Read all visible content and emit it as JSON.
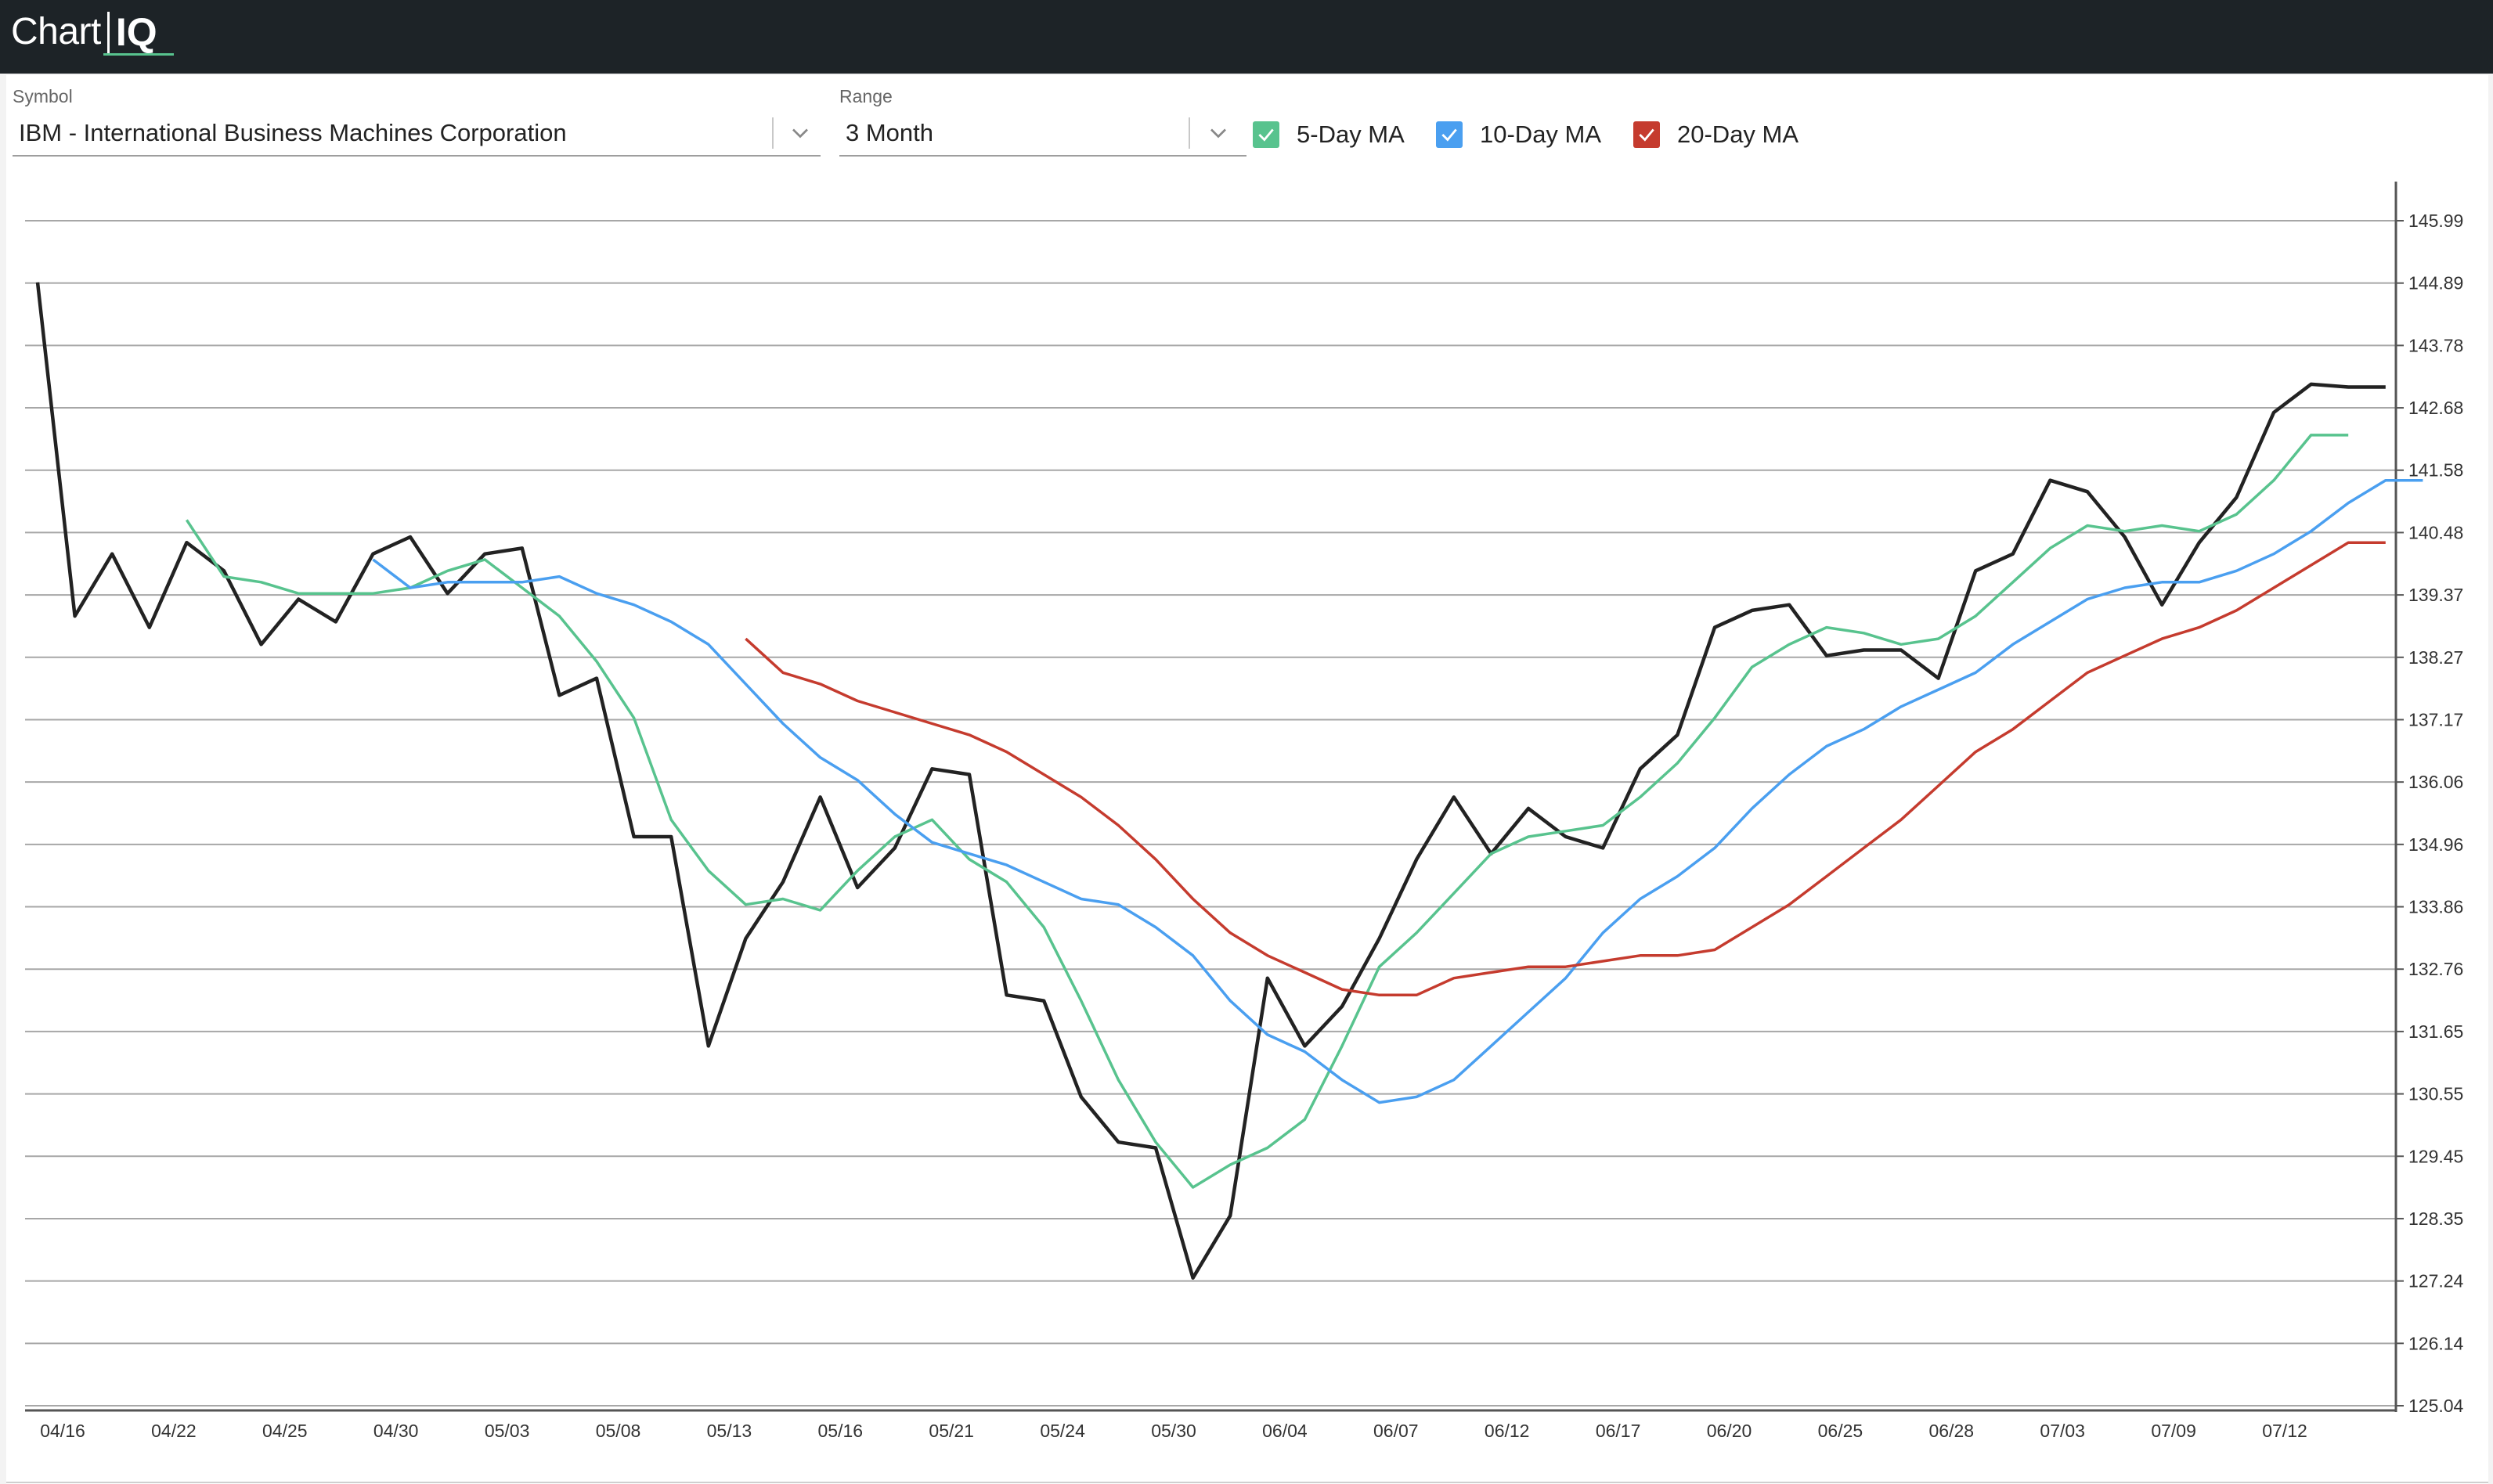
{
  "app": {
    "logo_chart": "Chart",
    "logo_iq": "IQ",
    "accent_color": "#58c38e",
    "topbar_color": "#1d2327"
  },
  "controls": {
    "symbol_label": "Symbol",
    "symbol_value": "IBM - International Business Machines Corporation",
    "range_label": "Range",
    "range_value": "3 Month",
    "chevron_icon": "chevron-down-icon",
    "ma_toggles": [
      {
        "label": "5-Day MA",
        "checked": true,
        "color": "#58c38e"
      },
      {
        "label": "10-Day MA",
        "checked": true,
        "color": "#4a9ff0"
      },
      {
        "label": "20-Day MA",
        "checked": true,
        "color": "#c53b2e"
      }
    ]
  },
  "chart_data": {
    "type": "line",
    "title": "",
    "xlabel": "",
    "ylabel": "",
    "ylim": [
      125.04,
      145.99
    ],
    "y_ticks": [
      "145.99",
      "144.89",
      "143.78",
      "142.68",
      "141.58",
      "140.48",
      "139.37",
      "138.27",
      "137.17",
      "136.06",
      "134.96",
      "133.86",
      "132.76",
      "131.65",
      "130.55",
      "129.45",
      "128.35",
      "127.24",
      "126.14",
      "125.04"
    ],
    "x_tick_labels": [
      "04/16",
      "04/22",
      "04/25",
      "04/30",
      "05/03",
      "05/08",
      "05/13",
      "05/16",
      "05/21",
      "05/24",
      "05/30",
      "06/04",
      "06/07",
      "06/12",
      "06/17",
      "06/20",
      "06/25",
      "06/28",
      "07/03",
      "07/09",
      "07/12"
    ],
    "grid": true,
    "legend": "none",
    "series": [
      {
        "name": "",
        "color": "#222222",
        "values": [
          144.9,
          139.0,
          140.1,
          138.8,
          140.3,
          139.8,
          138.5,
          139.3,
          138.9,
          140.1,
          140.4,
          139.4,
          140.1,
          140.2,
          137.6,
          137.9,
          135.1,
          135.1,
          131.4,
          133.3,
          134.3,
          135.8,
          134.2,
          134.9,
          136.3,
          136.2,
          132.3,
          132.2,
          130.5,
          129.7,
          129.6,
          127.3,
          128.4,
          132.6,
          131.4,
          132.1,
          133.3,
          134.7,
          135.8,
          134.8,
          135.6,
          135.1,
          134.9,
          136.3,
          136.9,
          138.8,
          139.1,
          139.2,
          138.3,
          138.4,
          138.4,
          137.9,
          139.8,
          140.1,
          141.4,
          141.2,
          140.4,
          139.2,
          140.3,
          141.1,
          142.6,
          143.1,
          143.05,
          143.05
        ],
        "start_index": 0
      },
      {
        "name": "5-Day MA",
        "color": "#58c38e",
        "values": [
          140.7,
          139.7,
          139.6,
          139.4,
          139.4,
          139.4,
          139.5,
          139.8,
          140.0,
          139.5,
          139.0,
          138.2,
          137.2,
          135.4,
          134.5,
          133.9,
          134.0,
          133.8,
          134.5,
          135.1,
          135.4,
          134.7,
          134.3,
          133.5,
          132.2,
          130.8,
          129.7,
          128.9,
          129.3,
          129.6,
          130.1,
          131.4,
          132.8,
          133.4,
          134.1,
          134.8,
          135.1,
          135.2,
          135.3,
          135.8,
          136.4,
          137.2,
          138.1,
          138.5,
          138.8,
          138.7,
          138.5,
          138.6,
          139.0,
          139.6,
          140.2,
          140.6,
          140.5,
          140.6,
          140.5,
          140.8,
          141.4,
          142.2,
          142.2
        ],
        "start_index": 4
      },
      {
        "name": "10-Day MA",
        "color": "#4a9ff0",
        "values": [
          140.0,
          139.5,
          139.6,
          139.6,
          139.6,
          139.7,
          139.4,
          139.2,
          138.9,
          138.5,
          137.8,
          137.1,
          136.5,
          136.1,
          135.5,
          135.0,
          134.8,
          134.6,
          134.3,
          134.0,
          133.9,
          133.5,
          133.0,
          132.2,
          131.6,
          131.3,
          130.8,
          130.4,
          130.5,
          130.8,
          131.4,
          132.0,
          132.6,
          133.4,
          134.0,
          134.4,
          134.9,
          135.6,
          136.2,
          136.7,
          137.0,
          137.4,
          137.7,
          138.0,
          138.5,
          138.9,
          139.3,
          139.5,
          139.6,
          139.6,
          139.8,
          140.1,
          140.5,
          141.0,
          141.4,
          141.4
        ],
        "start_index": 9
      },
      {
        "name": "20-Day MA",
        "color": "#c53b2e",
        "values": [
          138.6,
          138.0,
          137.8,
          137.5,
          137.3,
          137.1,
          136.9,
          136.6,
          136.2,
          135.8,
          135.3,
          134.7,
          134.0,
          133.4,
          133.0,
          132.7,
          132.4,
          132.3,
          132.3,
          132.6,
          132.7,
          132.8,
          132.8,
          132.9,
          133.0,
          133.0,
          133.1,
          133.5,
          133.9,
          134.4,
          134.9,
          135.4,
          136.0,
          136.6,
          137.0,
          137.5,
          138.0,
          138.3,
          138.6,
          138.8,
          139.1,
          139.5,
          139.9,
          140.3,
          140.3
        ],
        "start_index": 19
      }
    ]
  }
}
